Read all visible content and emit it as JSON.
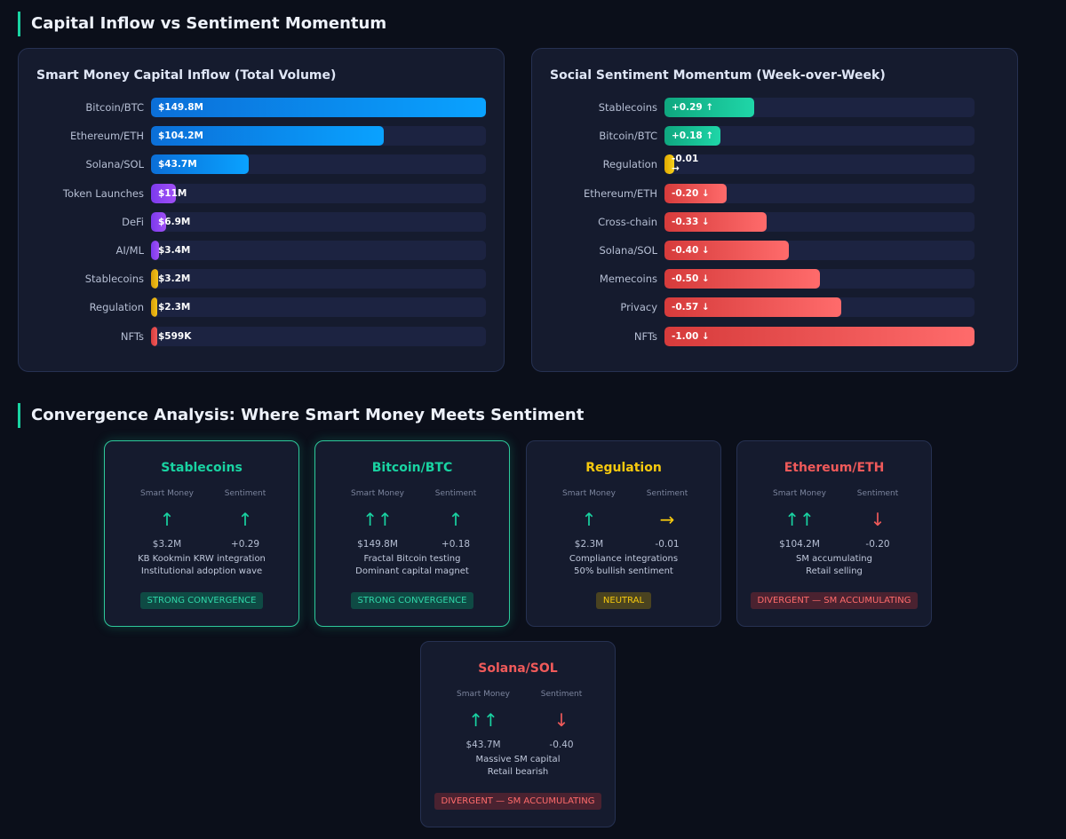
{
  "sections": {
    "top_title": "Capital Inflow vs Sentiment Momentum",
    "bottom_title": "Convergence Analysis: Where Smart Money Meets Sentiment"
  },
  "colors": {
    "accent": "#19d3a2",
    "positive": "#19d3a2",
    "neutral": "#f6c90e",
    "negative": "#f05a5a"
  },
  "chart_data": [
    {
      "type": "bar",
      "title": "Smart Money Capital Inflow (Total Volume)",
      "orientation": "horizontal",
      "unit": "USD",
      "categories": [
        "Bitcoin/BTC",
        "Ethereum/ETH",
        "Solana/SOL",
        "Token Launches",
        "DeFi",
        "AI/ML",
        "Stablecoins",
        "Regulation",
        "NFTs"
      ],
      "values": [
        149.8,
        104.2,
        43.7,
        11,
        6.9,
        3.4,
        3.2,
        2.3,
        0.599
      ],
      "labels": [
        "$149.8M",
        "$104.2M",
        "$43.7M",
        "$11M",
        "$6.9M",
        "$3.4M",
        "$3.2M",
        "$2.3M",
        "$599K"
      ],
      "colors": [
        "#0a84ff",
        "#0a84ff",
        "#0a84ff",
        "#8b3cf0",
        "#8b3cf0",
        "#8b3cf0",
        "#e8b10a",
        "#e8b10a",
        "#ef4444"
      ]
    },
    {
      "type": "bar",
      "title": "Social Sentiment Momentum (Week-over-Week)",
      "orientation": "horizontal",
      "categories": [
        "Stablecoins",
        "Bitcoin/BTC",
        "Regulation",
        "Ethereum/ETH",
        "Cross-chain",
        "Solana/SOL",
        "Memecoins",
        "Privacy",
        "NFTs"
      ],
      "values": [
        0.29,
        0.18,
        -0.01,
        -0.2,
        -0.33,
        -0.4,
        -0.5,
        -0.57,
        -1.0
      ],
      "labels": [
        "+0.29 ↑",
        "+0.18 ↑",
        "-0.01 →",
        "-0.20 ↓",
        "-0.33 ↓",
        "-0.40 ↓",
        "-0.50 ↓",
        "-0.57 ↓",
        "-1.00 ↓"
      ],
      "colors": [
        "#19d3a2",
        "#19d3a2",
        "#f6c90e",
        "#f05a5a",
        "#f05a5a",
        "#f05a5a",
        "#f05a5a",
        "#f05a5a",
        "#f05a5a"
      ]
    }
  ],
  "cards": [
    {
      "title": "Stablecoins",
      "tone": "positive",
      "sm_header": "Smart Money",
      "sent_header": "Sentiment",
      "sm_arrow": "↑",
      "sm_value": "$3.2M",
      "sent_arrow": "↑",
      "sent_value": "+0.29",
      "note1": "KB Kookmin KRW integration",
      "note2": "Institutional adoption wave",
      "badge": "STRONG CONVERGENCE"
    },
    {
      "title": "Bitcoin/BTC",
      "tone": "positive",
      "sm_header": "Smart Money",
      "sent_header": "Sentiment",
      "sm_arrow": "↑↑",
      "sm_value": "$149.8M",
      "sent_arrow": "↑",
      "sent_value": "+0.18",
      "note1": "Fractal Bitcoin testing",
      "note2": "Dominant capital magnet",
      "badge": "STRONG CONVERGENCE"
    },
    {
      "title": "Regulation",
      "tone": "neutral",
      "sm_header": "Smart Money",
      "sent_header": "Sentiment",
      "sm_arrow": "↑",
      "sm_value": "$2.3M",
      "sent_arrow": "→",
      "sent_value": "-0.01",
      "note1": "Compliance integrations",
      "note2": "50% bullish sentiment",
      "badge": "NEUTRAL"
    },
    {
      "title": "Ethereum/ETH",
      "tone": "negative",
      "sm_header": "Smart Money",
      "sent_header": "Sentiment",
      "sm_arrow": "↑↑",
      "sm_value": "$104.2M",
      "sent_arrow": "↓",
      "sent_value": "-0.20",
      "note1": "SM accumulating",
      "note2": "Retail selling",
      "badge": "DIVERGENT — SM ACCUMULATING"
    },
    {
      "title": "Solana/SOL",
      "tone": "negative",
      "sm_header": "Smart Money",
      "sent_header": "Sentiment",
      "sm_arrow": "↑↑",
      "sm_value": "$43.7M",
      "sent_arrow": "↓",
      "sent_value": "-0.40",
      "note1": "Massive SM capital",
      "note2": "Retail bearish",
      "badge": "DIVERGENT — SM ACCUMULATING"
    }
  ]
}
